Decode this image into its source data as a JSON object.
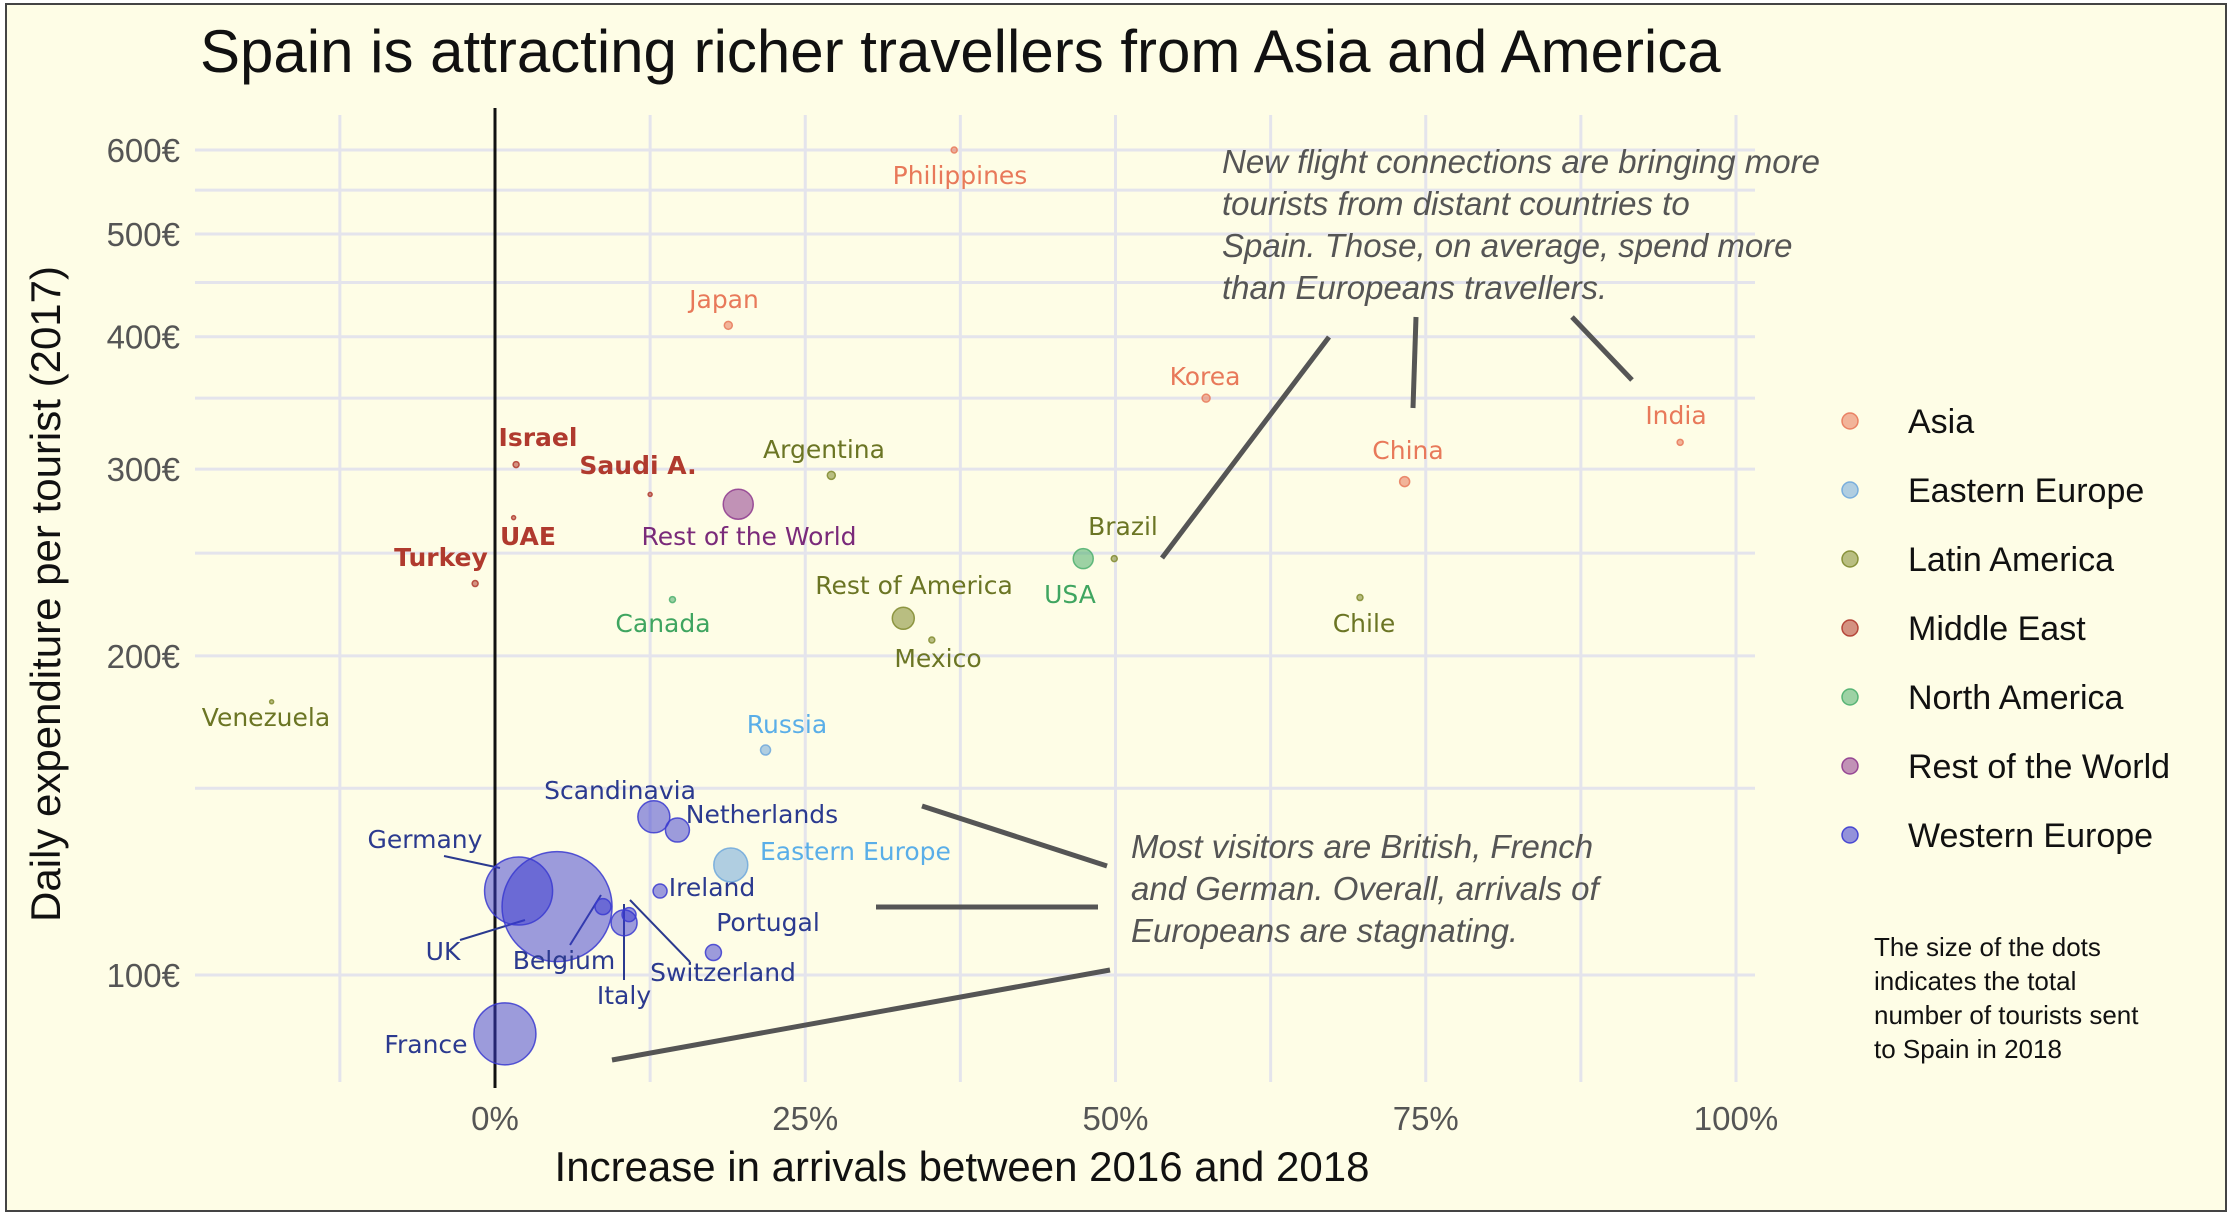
{
  "chart_data": {
    "type": "scatter",
    "title": "Spain is attracting richer travellers from Asia and America",
    "xlabel": "Increase in arrivals between 2016 and 2018",
    "ylabel": "Daily expenditure per tourist (2017)",
    "x_unit": "%",
    "y_unit": "€",
    "y_scale": "log",
    "xlim": [
      -0.24,
      1.03
    ],
    "ylim": [
      80,
      680
    ],
    "x_ticks": [
      0,
      0.25,
      0.5,
      0.75,
      1.0
    ],
    "x_tick_labels": [
      "0%",
      "25%",
      "50%",
      "75%",
      "100%"
    ],
    "y_ticks": [
      100,
      200,
      300,
      400,
      500,
      600
    ],
    "y_tick_labels": [
      "100€",
      "200€",
      "300€",
      "400€",
      "500€",
      "600€"
    ],
    "grid": true,
    "legend_position": "right",
    "series": [
      {
        "name": "Asia",
        "color": "#e8795a",
        "points": [
          {
            "label": "Philippines",
            "x": 0.37,
            "y": 600,
            "r": 3
          },
          {
            "label": "Japan",
            "x": 0.188,
            "y": 410,
            "r": 4
          },
          {
            "label": "Korea",
            "x": 0.573,
            "y": 350,
            "r": 4
          },
          {
            "label": "China",
            "x": 0.733,
            "y": 292,
            "r": 5
          },
          {
            "label": "India",
            "x": 0.955,
            "y": 318,
            "r": 3
          }
        ]
      },
      {
        "name": "Eastern Europe",
        "color": "#6fa8dc",
        "points": [
          {
            "label": "Russia",
            "x": 0.218,
            "y": 163,
            "r": 5
          },
          {
            "label": "Eastern Europe",
            "x": 0.19,
            "y": 127,
            "r": 17
          }
        ]
      },
      {
        "name": "Latin America",
        "color": "#808a2e",
        "points": [
          {
            "label": "Argentina",
            "x": 0.271,
            "y": 296,
            "r": 4
          },
          {
            "label": "Rest of America",
            "x": 0.329,
            "y": 217,
            "r": 11
          },
          {
            "label": "Mexico",
            "x": 0.352,
            "y": 207,
            "r": 3
          },
          {
            "label": "Brazil",
            "x": 0.499,
            "y": 247,
            "r": 3
          },
          {
            "label": "Chile",
            "x": 0.697,
            "y": 227,
            "r": 3
          },
          {
            "label": "Venezuela",
            "x": -0.18,
            "y": 181,
            "r": 2
          }
        ]
      },
      {
        "name": "Middle East",
        "color": "#b03a2e",
        "points": [
          {
            "label": "Israel",
            "x": 0.017,
            "y": 303,
            "r": 3
          },
          {
            "label": "Saudi A.",
            "x": 0.125,
            "y": 284,
            "r": 2
          },
          {
            "label": "UAE",
            "x": 0.015,
            "y": 270,
            "r": 2
          },
          {
            "label": "Turkey",
            "x": -0.016,
            "y": 234,
            "r": 3
          }
        ]
      },
      {
        "name": "North America",
        "color": "#4caf6e",
        "points": [
          {
            "label": "Canada",
            "x": 0.143,
            "y": 226,
            "r": 3
          },
          {
            "label": "USA",
            "x": 0.474,
            "y": 247,
            "r": 10
          }
        ]
      },
      {
        "name": "Rest of the World",
        "color": "#8e3a8e",
        "points": [
          {
            "label": "Rest of the World",
            "x": 0.196,
            "y": 278,
            "r": 15
          }
        ]
      },
      {
        "name": "Western Europe",
        "color": "#3a3ad0",
        "points": [
          {
            "label": "Scandinavia",
            "x": 0.128,
            "y": 141,
            "r": 16
          },
          {
            "label": "Netherlands",
            "x": 0.147,
            "y": 137,
            "r": 12
          },
          {
            "label": "Germany",
            "x": 0.019,
            "y": 120,
            "r": 34
          },
          {
            "label": "UK",
            "x": 0.05,
            "y": 116,
            "r": 55
          },
          {
            "label": "Belgium",
            "x": 0.087,
            "y": 116,
            "r": 8
          },
          {
            "label": "Ireland",
            "x": 0.133,
            "y": 120,
            "r": 7
          },
          {
            "label": "Italy",
            "x": 0.104,
            "y": 112,
            "r": 13
          },
          {
            "label": "Switzerland",
            "x": 0.108,
            "y": 114,
            "r": 7
          },
          {
            "label": "Portugal",
            "x": 0.176,
            "y": 105,
            "r": 8
          },
          {
            "label": "France",
            "x": 0.008,
            "y": 88,
            "r": 31
          }
        ]
      }
    ],
    "annotations": [
      "New flight connections are bringing more tourists from distant countries to Spain. Those, on average, spend more than Europeans travellers.",
      "Most visitors are British, French and German. Overall, arrivals of Europeans are stagnating."
    ],
    "size_note": "The size of the dots indicates the total number of tourists sent to Spain in 2018"
  }
}
